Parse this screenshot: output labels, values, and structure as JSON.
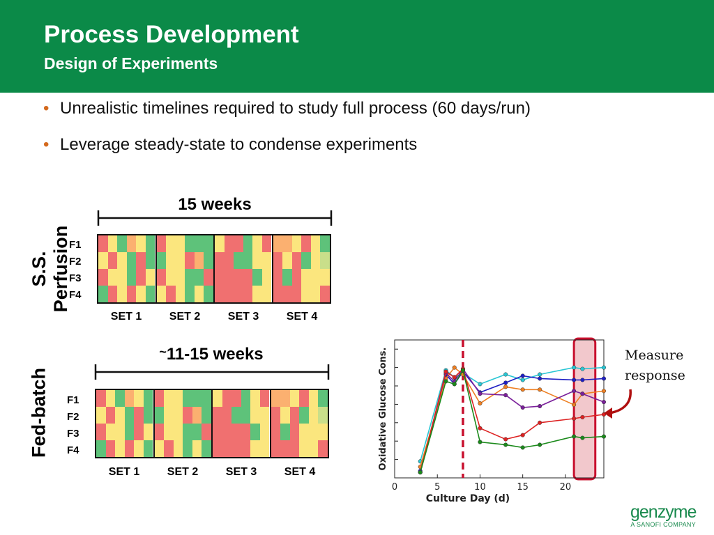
{
  "header": {
    "title": "Process Development",
    "subtitle": "Design of Experiments",
    "color": "#0b8a48"
  },
  "bullets": [
    "Unrealistic timelines required to study full process (60 days/run)",
    "Leverage steady-state to condense experiments"
  ],
  "bullet_glyph": "•",
  "perfusion": {
    "label_line1": "S.S.",
    "label_line2": "Perfusion",
    "duration": "15 weeks",
    "rows": [
      "F1",
      "F2",
      "F3",
      "F4"
    ],
    "sets": [
      "SET 1",
      "SET 2",
      "SET 3",
      "SET 4"
    ]
  },
  "fedbatch": {
    "label": "Fed-batch",
    "duration_prefix": "~",
    "duration": "11-15 weeks",
    "rows": [
      "F1",
      "F2",
      "F3",
      "F4"
    ],
    "sets": [
      "SET 1",
      "SET 2",
      "SET 3",
      "SET 4"
    ]
  },
  "heatmap_palette": {
    "r": "#f07070",
    "y": "#fbe67e",
    "g": "#5ec27a",
    "o": "#fbb070",
    "l": "#c9df8a"
  },
  "heatmap_grid": [
    [
      "rygoyg",
      "ryyggg",
      "yrrgyr",
      "ooyryg"
    ],
    [
      "yrygrg",
      "gyyrog",
      "rrggyy",
      "ryrgyl"
    ],
    [
      "ryygry",
      "ryyggr",
      "rrrrgy",
      "rgryyy"
    ],
    [
      "gryryg",
      "yrygyg",
      "rrrryy",
      "rrryyr"
    ]
  ],
  "annotation": {
    "text_line1": "Measure",
    "text_line2": "response"
  },
  "chart_data": {
    "type": "line",
    "xlabel": "Culture Day (d)",
    "ylabel": "Oxidative Glucose Cons.",
    "xlim": [
      0,
      24.5
    ],
    "ylim": [
      0,
      10
    ],
    "xticks": [
      "0",
      "5",
      "10",
      "15",
      "20"
    ],
    "xtick_values": [
      0,
      5,
      10,
      15,
      20
    ],
    "vline_x": 8,
    "highlight_range": [
      21,
      23.5
    ],
    "series": [
      {
        "color": "#29c6d4",
        "x": [
          3,
          6,
          7,
          8,
          10,
          13,
          15,
          17,
          21,
          22,
          24.5
        ],
        "y": [
          1.2,
          7.8,
          7.3,
          7.6,
          6.8,
          7.5,
          7.1,
          7.5,
          8.0,
          7.9,
          8.0
        ]
      },
      {
        "color": "#1f1fc4",
        "x": [
          3,
          6,
          7,
          8,
          10,
          13,
          15,
          17,
          21,
          22,
          24.5
        ],
        "y": [
          0.5,
          7.5,
          6.8,
          7.7,
          6.2,
          6.9,
          7.4,
          7.2,
          7.1,
          7.1,
          7.2
        ]
      },
      {
        "color": "#ee7f22",
        "x": [
          3,
          6,
          7,
          8,
          10,
          13,
          15,
          17,
          21,
          22,
          24.5
        ],
        "y": [
          0.8,
          7.2,
          8.0,
          7.5,
          5.4,
          6.6,
          6.4,
          6.4,
          5.3,
          6.1,
          6.3
        ]
      },
      {
        "color": "#7a1f9a",
        "x": [
          3,
          6,
          7,
          8,
          10,
          13,
          15,
          17,
          21,
          22,
          24.5
        ],
        "y": [
          0.4,
          7.6,
          7.0,
          7.9,
          6.1,
          6.0,
          5.1,
          5.2,
          6.3,
          6.1,
          5.5
        ]
      },
      {
        "color": "#dd2222",
        "x": [
          3,
          6,
          7,
          8,
          10,
          13,
          15,
          17,
          21,
          22,
          24.5
        ],
        "y": [
          0.4,
          7.7,
          7.3,
          7.9,
          3.6,
          2.8,
          3.1,
          4.0,
          4.3,
          4.4,
          4.6
        ]
      },
      {
        "color": "#1b8a1b",
        "x": [
          3,
          6,
          7,
          8,
          10,
          13,
          15,
          17,
          21,
          22,
          24.5
        ],
        "y": [
          0.4,
          7.0,
          6.8,
          7.8,
          2.6,
          2.4,
          2.2,
          2.4,
          3.0,
          2.9,
          3.0
        ]
      }
    ]
  },
  "logo": {
    "word": "genzyme",
    "tagline": "A SANOFI COMPANY"
  }
}
